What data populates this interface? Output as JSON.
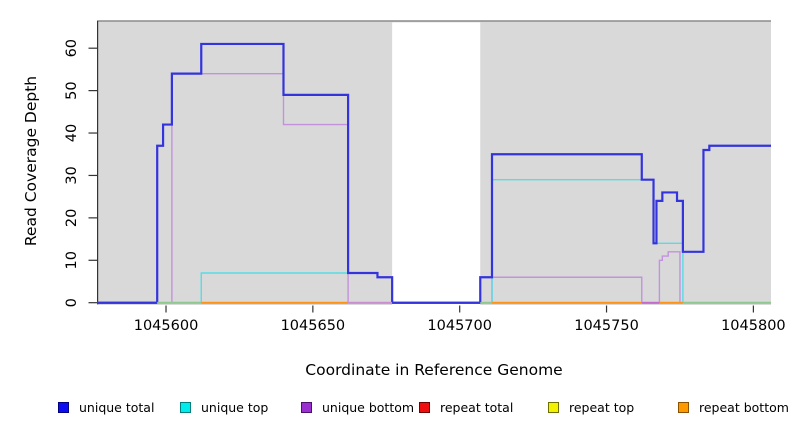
{
  "figure": {
    "xlabel": "Coordinate in Reference Genome",
    "ylabel": "Read Coverage Depth"
  },
  "chart_data": {
    "type": "line",
    "step": true,
    "title": "",
    "xlabel": "Coordinate in Reference Genome",
    "ylabel": "Read Coverage Depth",
    "xlim": [
      1045576.5,
      1045806
    ],
    "ylim": [
      0,
      66.5
    ],
    "x_ticks": [
      1045600,
      1045650,
      1045700,
      1045750,
      1045800
    ],
    "y_ticks": [
      0,
      10,
      20,
      30,
      40,
      50,
      60
    ],
    "grid": false,
    "legend_position": "bottom",
    "panel_bg": "#d9d9d9",
    "panel_top_border": "#8c8c8c",
    "axis_color": "#333333",
    "no_data_region": {
      "x0": 1045677,
      "x1": 1045707,
      "color": "#ffffff"
    },
    "draw_order": [
      "repeat_total",
      "repeat_top",
      "repeat_bottom",
      "unique_bottom",
      "unique_top",
      "unique_total"
    ],
    "series": [
      {
        "name": "unique total",
        "key": "unique_total",
        "line_color": "#3434dd",
        "swatch_color": "#0d0df0",
        "swatch_border": "#000080",
        "line_width": 2.2,
        "steps": [
          [
            1045576.5,
            0
          ],
          [
            1045597,
            37
          ],
          [
            1045599,
            42
          ],
          [
            1045602,
            54
          ],
          [
            1045612,
            61
          ],
          [
            1045640,
            49
          ],
          [
            1045662,
            7
          ],
          [
            1045672,
            6
          ],
          [
            1045677,
            0
          ],
          [
            1045707,
            6
          ],
          [
            1045711,
            35
          ],
          [
            1045762,
            29
          ],
          [
            1045766,
            14
          ],
          [
            1045767,
            24
          ],
          [
            1045769,
            26
          ],
          [
            1045774,
            24
          ],
          [
            1045776,
            12
          ],
          [
            1045783,
            36
          ],
          [
            1045785,
            37
          ],
          [
            1045806,
            37
          ]
        ]
      },
      {
        "name": "unique top",
        "key": "unique_top",
        "line_color": "#55dde4",
        "swatch_color": "#00ebeb",
        "swatch_border": "#007d7d",
        "line_width": 1.4,
        "steps": [
          [
            1045576.5,
            0
          ],
          [
            1045612,
            7
          ],
          [
            1045672,
            6
          ],
          [
            1045677,
            0
          ],
          [
            1045711,
            29
          ],
          [
            1045766,
            14
          ],
          [
            1045776,
            0
          ],
          [
            1045806,
            0
          ]
        ]
      },
      {
        "name": "unique bottom",
        "key": "unique_bottom",
        "line_color": "#c392dd",
        "swatch_color": "#9b30d0",
        "swatch_border": "#4b1070",
        "line_width": 1.4,
        "steps": [
          [
            1045576.5,
            0
          ],
          [
            1045602,
            54
          ],
          [
            1045640,
            42
          ],
          [
            1045662,
            0
          ],
          [
            1045711,
            6
          ],
          [
            1045762,
            0
          ],
          [
            1045768,
            10
          ],
          [
            1045769,
            11
          ],
          [
            1045771,
            12
          ],
          [
            1045775,
            0
          ],
          [
            1045806,
            0
          ]
        ]
      },
      {
        "name": "repeat total",
        "key": "repeat_total",
        "line_color": "#dd2222",
        "swatch_color": "#f00d0d",
        "swatch_border": "#700000",
        "line_width": 1.4,
        "steps": [
          [
            1045576.5,
            0
          ],
          [
            1045806,
            0
          ]
        ]
      },
      {
        "name": "repeat top",
        "key": "repeat_top",
        "line_color": "#e6e622",
        "swatch_color": "#f2f200",
        "swatch_border": "#6f6f00",
        "line_width": 1.4,
        "steps": [
          [
            1045576.5,
            0
          ],
          [
            1045806,
            0
          ]
        ]
      },
      {
        "name": "repeat bottom",
        "key": "repeat_bottom",
        "line_color": "#ff9316",
        "swatch_color": "#ff9900",
        "swatch_border": "#8a5200",
        "line_width": 1.6,
        "steps": [
          [
            1045576.5,
            0
          ],
          [
            1045806,
            0
          ]
        ]
      }
    ],
    "baseline_segments": [
      {
        "x0": 1045576.5,
        "x1": 1045597,
        "color": "#3434dd"
      },
      {
        "x0": 1045597,
        "x1": 1045612,
        "color": "#8fc98f"
      },
      {
        "x0": 1045612,
        "x1": 1045662,
        "color": "#ff9316"
      },
      {
        "x0": 1045662,
        "x1": 1045677,
        "color": "#c98fd0"
      },
      {
        "x0": 1045677,
        "x1": 1045707,
        "color": "#3434dd"
      },
      {
        "x0": 1045707,
        "x1": 1045711,
        "color": "#8fc98f"
      },
      {
        "x0": 1045711,
        "x1": 1045762,
        "color": "#ff9316"
      },
      {
        "x0": 1045762,
        "x1": 1045768,
        "color": "#c06cc8"
      },
      {
        "x0": 1045768,
        "x1": 1045776,
        "color": "#ff9316"
      },
      {
        "x0": 1045776,
        "x1": 1045806,
        "color": "#8fc98f"
      }
    ]
  }
}
